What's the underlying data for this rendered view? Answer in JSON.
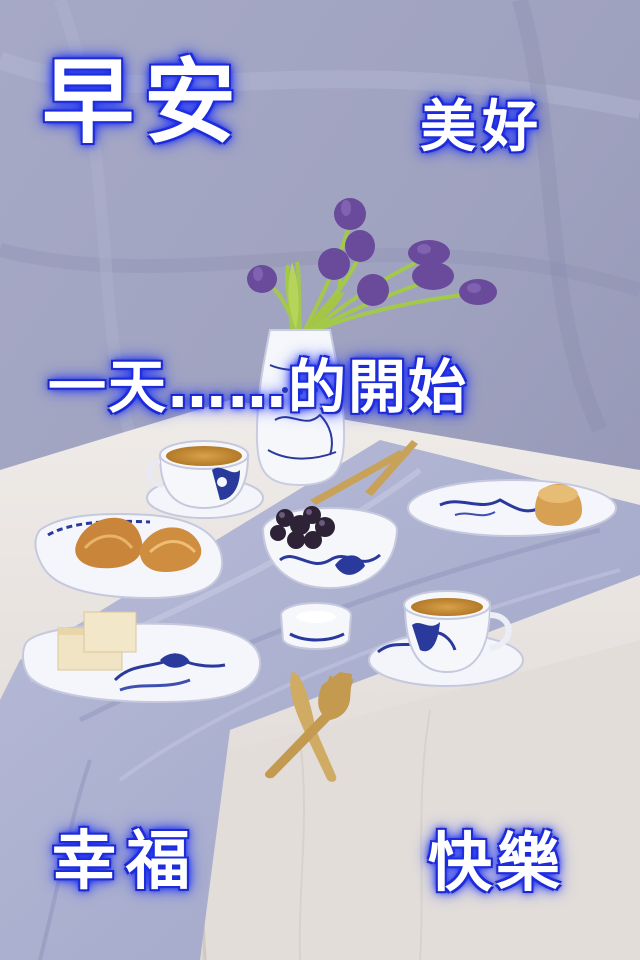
{
  "captions": {
    "title": "早安",
    "top_right": "美好",
    "middle": "一天……的開始",
    "bottom_left": "幸福",
    "bottom_right": "快樂"
  },
  "colors": {
    "caption_text": "#ffffff",
    "caption_glow": "#1b2bd8",
    "backdrop": "#9c9fbd",
    "tablecloth": "#e8e3df",
    "runner": "#aeb3d1",
    "porcelain_blue": "#27389a",
    "tulip": "#6a4a9a"
  },
  "scene": {
    "items": [
      "tulip-vase",
      "teacup",
      "croissant-plate",
      "grape-bowl",
      "cake-plate",
      "muffin-plate",
      "candle-holder",
      "knife-and-fork"
    ]
  }
}
